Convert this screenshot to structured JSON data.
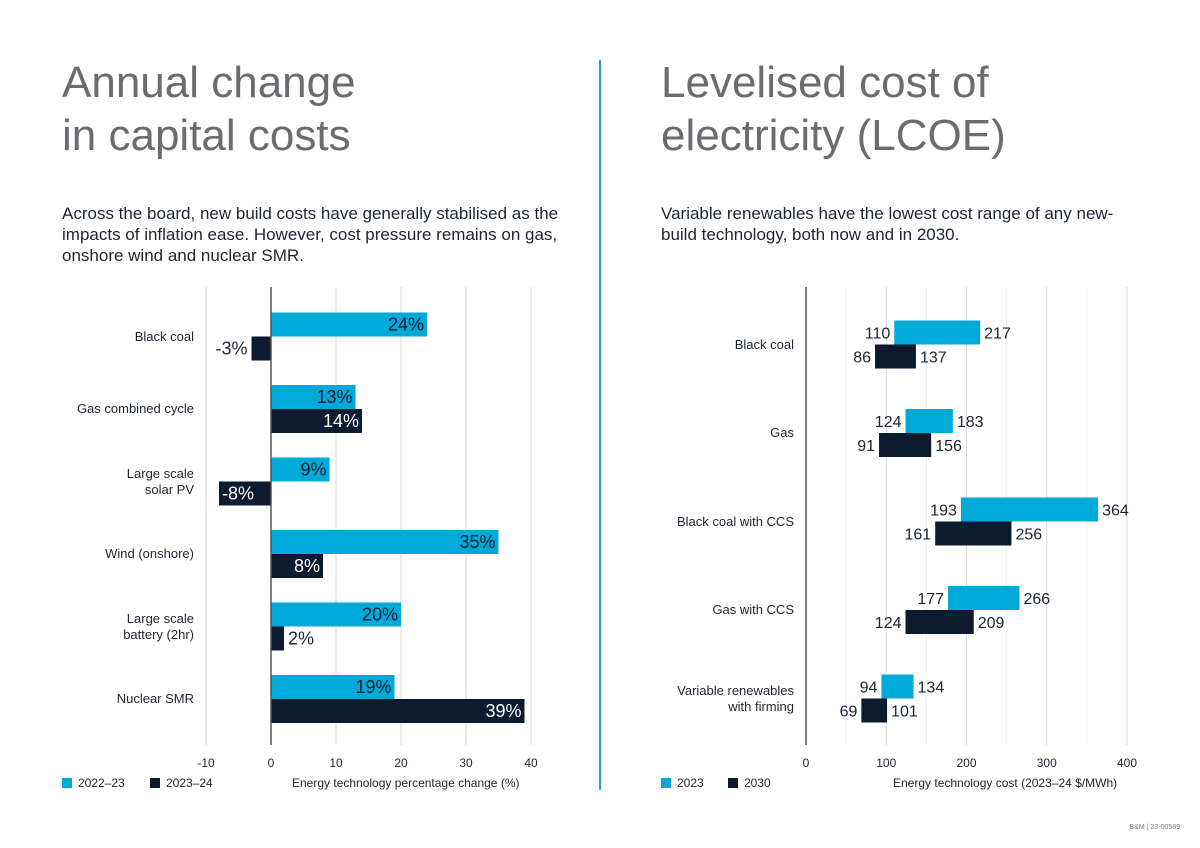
{
  "left": {
    "title_line1": "Annual change",
    "title_line2": "in capital costs",
    "subtitle": "Across the board, new build costs have generally stabilised as the impacts of inflation ease. However, cost pressure remains on gas, onshore wind and nuclear SMR.",
    "legend": [
      "2022–23",
      "2023–24"
    ],
    "xlabel": "Energy technology percentage change (%)"
  },
  "right": {
    "title_line1": "Levelised cost of",
    "title_line2": "electricity (LCOE)",
    "subtitle": "Variable renewables have the lowest cost range of any new-build technology, both now and in 2030.",
    "legend": [
      "2023",
      "2030"
    ],
    "xlabel": "Energy technology cost (2023–24 $/MWh)"
  },
  "footer": "B&M | 23-00589",
  "colors": {
    "light": "#00aad8",
    "dark": "#0c1b30",
    "grid": "#d9d9d9",
    "axis": "#555555",
    "divider": "#1aa6d6"
  },
  "chart_data": [
    {
      "type": "bar",
      "orientation": "horizontal",
      "categories": [
        "Black coal",
        "Gas combined cycle",
        "Large scale\nsolar PV",
        "Wind (onshore)",
        "Large scale\nbattery (2hr)",
        "Nuclear SMR"
      ],
      "series": [
        {
          "name": "2022–23",
          "values": [
            24,
            13,
            9,
            35,
            20,
            19
          ]
        },
        {
          "name": "2023–24",
          "values": [
            -3,
            14,
            -8,
            8,
            2,
            39
          ]
        }
      ],
      "value_labels": [
        [
          "24%",
          "13%",
          "9%",
          "35%",
          "20%",
          "19%"
        ],
        [
          "-3%",
          "14%",
          "-8%",
          "8%",
          "2%",
          "39%"
        ]
      ],
      "xticks": [
        -10,
        0,
        10,
        20,
        30,
        40
      ],
      "xlim": [
        -10,
        40
      ],
      "xlabel": "Energy technology percentage change (%)",
      "grid": true,
      "legend": "bottom-left"
    },
    {
      "type": "bar",
      "orientation": "horizontal-range",
      "categories": [
        "Black coal",
        "Gas",
        "Black coal with CCS",
        "Gas with CCS",
        "Variable renewables\nwith firming"
      ],
      "series": [
        {
          "name": "2023",
          "low": [
            110,
            124,
            193,
            177,
            94
          ],
          "high": [
            217,
            183,
            364,
            266,
            134
          ]
        },
        {
          "name": "2030",
          "low": [
            86,
            91,
            161,
            124,
            69
          ],
          "high": [
            137,
            156,
            256,
            209,
            101
          ]
        }
      ],
      "xticks": [
        0,
        100,
        200,
        300,
        400
      ],
      "xlim": [
        0,
        400
      ],
      "xlabel": "Energy technology cost (2023–24 $/MWh)",
      "grid": true,
      "legend": "bottom-left"
    }
  ]
}
